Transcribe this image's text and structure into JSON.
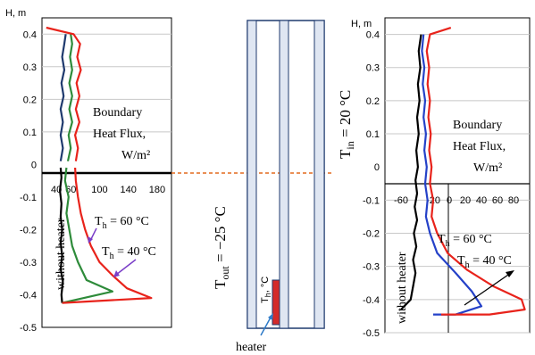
{
  "colors": {
    "red": "#e8231b",
    "green": "#2e8b3a",
    "navy": "#1f3a6e",
    "blue": "#2441c8",
    "black": "#000000",
    "purple": "#7a3ec8",
    "orange_dash": "#e36a1e",
    "wall_fill": "#dfe6f2",
    "heater_fill": "#d42a2a"
  },
  "chart_data": [
    {
      "type": "line",
      "panel": "left",
      "orientation": "profile (flux on x, height on y)",
      "ylabel": "H, m",
      "ylim": [
        -0.5,
        0.45
      ],
      "yticks": [
        "0.4",
        "0.3",
        "0.2",
        "0.1",
        "0",
        "-0.1",
        "-0.2",
        "-0.3",
        "-0.4",
        "-0.5"
      ],
      "xlim": [
        20,
        200
      ],
      "xticks": [
        "40",
        "60",
        "100",
        "140",
        "180"
      ],
      "annotation": [
        "Boundary",
        "Heat Flux,",
        "W/m²"
      ],
      "labels": {
        "without": "without heater",
        "th60": "T",
        "th60_sub": "h",
        "th60_rest": " = 60 °C",
        "th40": "T",
        "th40_sub": "h",
        "th40_rest": " = 40 °C"
      },
      "series": [
        {
          "name": "without heater",
          "color": "black",
          "points": [
            [
              48,
              -0.425
            ],
            [
              47,
              -0.4
            ],
            [
              49,
              -0.36
            ],
            [
              46,
              -0.32
            ],
            [
              48,
              -0.28
            ],
            [
              46,
              -0.24
            ],
            [
              48,
              -0.2
            ],
            [
              46,
              -0.16
            ],
            [
              47,
              -0.12
            ],
            [
              45,
              -0.08
            ],
            [
              47,
              -0.04
            ],
            [
              46,
              -0.01
            ]
          ]
        },
        {
          "name": "T_h = 40 °C",
          "color": "green",
          "points": [
            [
              48,
              -0.425
            ],
            [
              118,
              -0.39
            ],
            [
              82,
              -0.355
            ],
            [
              70,
              -0.3
            ],
            [
              62,
              -0.25
            ],
            [
              58,
              -0.2
            ],
            [
              54,
              -0.15
            ],
            [
              57,
              -0.1
            ],
            [
              52,
              -0.05
            ],
            [
              54,
              -0.01
            ]
          ]
        },
        {
          "name": "T_h = 60 °C",
          "color": "red",
          "points": [
            [
              48,
              -0.425
            ],
            [
              172,
              -0.41
            ],
            [
              138,
              -0.38
            ],
            [
              118,
              -0.34
            ],
            [
              100,
              -0.3
            ],
            [
              88,
              -0.25
            ],
            [
              80,
              -0.2
            ],
            [
              74,
              -0.15
            ],
            [
              70,
              -0.1
            ],
            [
              67,
              -0.05
            ],
            [
              66,
              -0.01
            ]
          ]
        },
        {
          "name": "upper without",
          "color": "navy",
          "points": [
            [
              46,
              0.01
            ],
            [
              49,
              0.05
            ],
            [
              46,
              0.09
            ],
            [
              49,
              0.13
            ],
            [
              46,
              0.17
            ],
            [
              50,
              0.21
            ],
            [
              47,
              0.25
            ],
            [
              51,
              0.29
            ],
            [
              48,
              0.33
            ],
            [
              51,
              0.37
            ],
            [
              53,
              0.4
            ]
          ]
        },
        {
          "name": "upper 40",
          "color": "green",
          "points": [
            [
              56,
              0.01
            ],
            [
              60,
              0.05
            ],
            [
              57,
              0.09
            ],
            [
              62,
              0.13
            ],
            [
              58,
              0.17
            ],
            [
              62,
              0.21
            ],
            [
              58,
              0.25
            ],
            [
              62,
              0.29
            ],
            [
              59,
              0.33
            ],
            [
              62,
              0.37
            ],
            [
              60,
              0.4
            ]
          ]
        },
        {
          "name": "upper 60",
          "color": "red",
          "points": [
            [
              67,
              0.01
            ],
            [
              70,
              0.05
            ],
            [
              66,
              0.09
            ],
            [
              72,
              0.13
            ],
            [
              67,
              0.17
            ],
            [
              72,
              0.21
            ],
            [
              68,
              0.25
            ],
            [
              74,
              0.29
            ],
            [
              69,
              0.33
            ],
            [
              73,
              0.37
            ],
            [
              64,
              0.4
            ],
            [
              26,
              0.42
            ]
          ]
        }
      ]
    },
    {
      "type": "diagram",
      "panel": "middle",
      "tout_label": {
        "T": "T",
        "sub": "out",
        "rest": " = −25 °C"
      },
      "th_label": {
        "T": "T",
        "sub": "h",
        "rest": ", °C"
      },
      "heater_label": "heater"
    },
    {
      "type": "line",
      "panel": "right",
      "ylabel": "H, m",
      "ylim": [
        -0.5,
        0.45
      ],
      "yticks": [
        "0.4",
        "0.3",
        "0.2",
        "0.1",
        "0",
        "-0.1",
        "-0.2",
        "-0.3",
        "-0.4",
        "-0.5"
      ],
      "xlim": [
        -80,
        100
      ],
      "xticks": [
        "-60",
        "-20",
        "0",
        "20",
        "40",
        "60",
        "80"
      ],
      "annotation": [
        "Boundary",
        "Heat Flux,",
        "W/m²"
      ],
      "tin_label": {
        "T": "T",
        "sub": "in",
        "rest": " = 20 °C"
      },
      "labels": {
        "without": "without heater",
        "th60": "T",
        "th60_sub": "h",
        "th60_rest": " = 60 °C",
        "th40": "T",
        "th40_sub": "h",
        "th40_rest": " = 40 °C"
      },
      "series": [
        {
          "name": "without heater",
          "color": "black",
          "points": [
            [
              -60,
              -0.43
            ],
            [
              -48,
              -0.4
            ],
            [
              -45,
              -0.36
            ],
            [
              -42,
              -0.32
            ],
            [
              -45,
              -0.28
            ],
            [
              -41,
              -0.24
            ],
            [
              -44,
              -0.2
            ],
            [
              -40,
              -0.16
            ],
            [
              -43,
              -0.12
            ],
            [
              -40,
              -0.08
            ],
            [
              -42,
              -0.04
            ],
            [
              -39,
              0.0
            ],
            [
              -41,
              0.05
            ],
            [
              -38,
              0.1
            ],
            [
              -40,
              0.15
            ],
            [
              -37,
              0.2
            ],
            [
              -39,
              0.25
            ],
            [
              -36,
              0.3
            ],
            [
              -38,
              0.35
            ],
            [
              -35,
              0.4
            ]
          ]
        },
        {
          "name": "T_h = 40 °C",
          "color": "blue",
          "points": [
            [
              -32,
              0.4
            ],
            [
              -34,
              0.35
            ],
            [
              -31,
              0.3
            ],
            [
              -33,
              0.25
            ],
            [
              -30,
              0.2
            ],
            [
              -32,
              0.15
            ],
            [
              -29,
              0.1
            ],
            [
              -31,
              0.05
            ],
            [
              -28,
              0.0
            ],
            [
              -30,
              -0.05
            ],
            [
              -27,
              -0.1
            ],
            [
              -29,
              -0.15
            ],
            [
              -24,
              -0.2
            ],
            [
              -15,
              -0.26
            ],
            [
              8,
              -0.32
            ],
            [
              28,
              -0.375
            ],
            [
              40,
              -0.42
            ],
            [
              8,
              -0.445
            ],
            [
              -20,
              -0.445
            ]
          ]
        },
        {
          "name": "T_h = 60 °C",
          "color": "red",
          "points": [
            [
              2,
              0.42
            ],
            [
              -24,
              0.4
            ],
            [
              -28,
              0.35
            ],
            [
              -25,
              0.3
            ],
            [
              -27,
              0.25
            ],
            [
              -24,
              0.2
            ],
            [
              -26,
              0.15
            ],
            [
              -23,
              0.1
            ],
            [
              -25,
              0.05
            ],
            [
              -22,
              0.0
            ],
            [
              -24,
              -0.05
            ],
            [
              -20,
              -0.1
            ],
            [
              -22,
              -0.15
            ],
            [
              -15,
              -0.2
            ],
            [
              -2,
              -0.26
            ],
            [
              22,
              -0.31
            ],
            [
              55,
              -0.36
            ],
            [
              90,
              -0.4
            ],
            [
              94,
              -0.43
            ],
            [
              50,
              -0.445
            ],
            [
              -10,
              -0.445
            ]
          ]
        }
      ]
    }
  ]
}
